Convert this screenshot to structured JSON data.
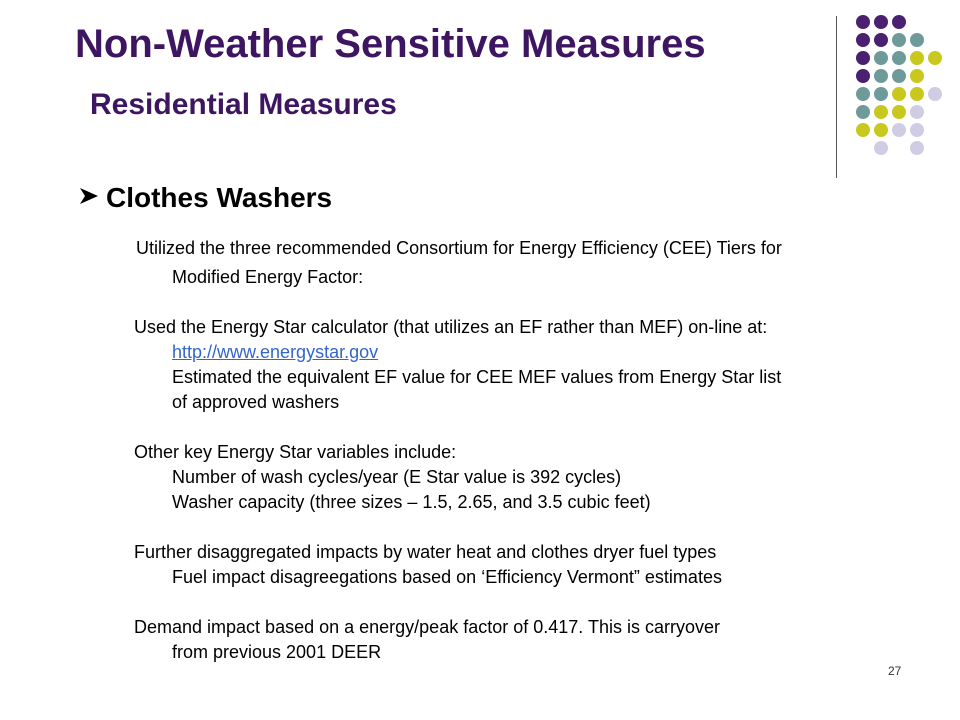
{
  "slide": {
    "title": "Non-Weather Sensitive Measures",
    "subtitle": "Residential Measures",
    "section_heading": "Clothes Washers",
    "bullet_icon": "arrow-bullet-icon",
    "page_number": "27",
    "colors": {
      "title": "#3d1560",
      "dot_purple": "#4b2070",
      "dot_teal": "#6f9a9a",
      "dot_yellow": "#c8c81e",
      "dot_lavender": "#d0cce4",
      "link": "#3366cc"
    }
  },
  "content": {
    "para1_line1": "Utilized the three recommended Consortium for Energy Efficiency (CEE) Tiers for",
    "para1_line2": "Modified Energy Factor:",
    "para2_line1": "Used the Energy Star calculator (that utilizes an EF rather than MEF) on-line at:",
    "para2_link": "http://www.energystar.gov",
    "para2_line3": "Estimated the equivalent EF value for CEE MEF values from Energy Star list",
    "para2_line4": "of approved washers",
    "para3_line1": "Other key Energy Star variables include:",
    "para3_line2": "Number of wash cycles/year (E Star value is 392 cycles)",
    "para3_line3": "Washer capacity (three sizes – 1.5, 2.65, and 3.5 cubic feet)",
    "para4_line1": "Further disaggregated impacts by water heat and clothes dryer fuel types",
    "para4_line2": "Fuel impact disagreegations based on ‘Efficiency Vermont” estimates",
    "para5_line1": "Demand impact based on a energy/peak factor of 0.417.  This is carryover",
    "para5_line2": "from previous 2001 DEER"
  }
}
